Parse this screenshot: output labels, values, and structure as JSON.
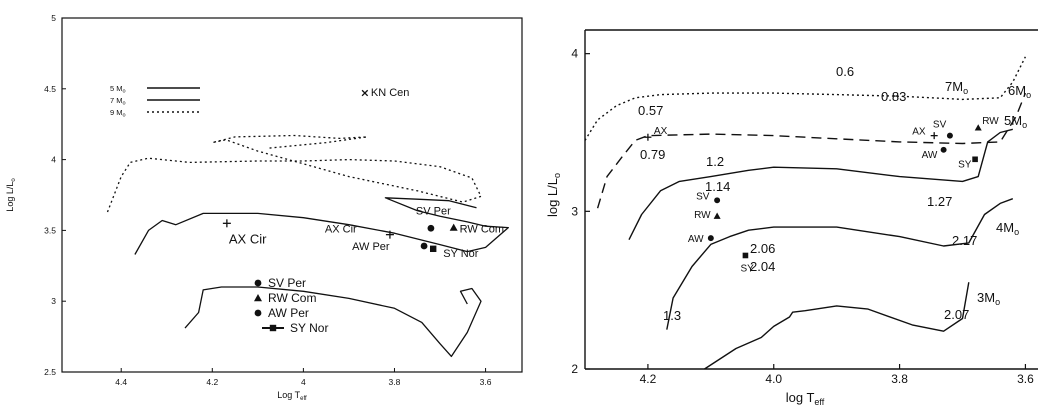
{
  "chart_data": [
    {
      "type": "line",
      "panel": "left",
      "xlabel": "Log T_eff",
      "ylabel": "Log L/L_o",
      "xlim": [
        4.53,
        3.52
      ],
      "ylim": [
        2.5,
        5
      ],
      "x_ticks": [
        "4.4",
        "4.2",
        "4",
        "3.8",
        "3.6"
      ],
      "y_ticks": [
        "2.5",
        "3",
        "3.5",
        "4",
        "4.5",
        "5"
      ],
      "legend_placement": "top-left",
      "series": [
        {
          "name": "5 M_o",
          "style": "solid",
          "points": [
            [
              4.26,
              2.81
            ],
            [
              4.23,
              2.92
            ],
            [
              4.22,
              3.08
            ],
            [
              4.18,
              3.1
            ],
            [
              4.1,
              3.1
            ],
            [
              4.0,
              3.07
            ],
            [
              3.9,
              3.02
            ],
            [
              3.8,
              2.95
            ],
            [
              3.74,
              2.85
            ],
            [
              3.7,
              2.7
            ],
            [
              3.675,
              2.61
            ],
            [
              3.64,
              2.78
            ],
            [
              3.61,
              3.0
            ],
            [
              3.63,
              3.09
            ],
            [
              3.655,
              3.07
            ],
            [
              3.64,
              2.98
            ]
          ]
        },
        {
          "name": "7 M_o",
          "style": "solid",
          "points": [
            [
              4.37,
              3.33
            ],
            [
              4.34,
              3.5
            ],
            [
              4.31,
              3.57
            ],
            [
              4.28,
              3.54
            ],
            [
              4.22,
              3.62
            ],
            [
              4.1,
              3.62
            ],
            [
              4.0,
              3.59
            ],
            [
              3.9,
              3.54
            ],
            [
              3.8,
              3.48
            ],
            [
              3.7,
              3.4
            ],
            [
              3.64,
              3.35
            ],
            [
              3.6,
              3.38
            ],
            [
              3.55,
              3.52
            ],
            [
              3.6,
              3.53
            ],
            [
              3.64,
              3.56
            ],
            [
              3.7,
              3.6
            ],
            [
              3.75,
              3.64
            ],
            [
              3.82,
              3.73
            ],
            [
              3.75,
              3.72
            ],
            [
              3.68,
              3.71
            ],
            [
              3.62,
              3.66
            ]
          ]
        },
        {
          "name": "9 M_o",
          "style": "dotted",
          "points": [
            [
              4.43,
              3.63
            ],
            [
              4.4,
              3.88
            ],
            [
              4.38,
              3.98
            ],
            [
              4.34,
              4.01
            ],
            [
              4.25,
              3.98
            ],
            [
              4.1,
              3.99
            ],
            [
              4.0,
              3.99
            ],
            [
              3.9,
              4.0
            ],
            [
              3.8,
              3.99
            ],
            [
              3.7,
              3.95
            ],
            [
              3.63,
              3.87
            ],
            [
              3.61,
              3.74
            ],
            [
              3.65,
              3.7
            ],
            [
              3.75,
              3.78
            ],
            [
              3.9,
              3.88
            ],
            [
              4.0,
              3.97
            ],
            [
              4.1,
              4.06
            ],
            [
              4.17,
              4.14
            ],
            [
              4.2,
              4.12
            ],
            [
              4.15,
              4.16
            ],
            [
              4.02,
              4.17
            ],
            [
              3.92,
              4.15
            ],
            [
              3.86,
              4.16
            ],
            [
              3.95,
              4.12
            ],
            [
              4.08,
              4.08
            ]
          ]
        }
      ],
      "stars": [
        {
          "label": "AX Cir",
          "symbol": "plus",
          "x": 4.168,
          "y": 3.55
        },
        {
          "label": "AX Cir",
          "symbol": "plus",
          "x": 3.81,
          "y": 3.47
        },
        {
          "label": "SV Per",
          "symbol": "dot",
          "x": 3.72,
          "y": 3.515
        },
        {
          "label": "RW Com",
          "symbol": "triangle",
          "x": 3.67,
          "y": 3.52
        },
        {
          "label": "AW Per",
          "symbol": "dot",
          "x": 3.735,
          "y": 3.39
        },
        {
          "label": "SY Nor",
          "symbol": "square",
          "x": 3.715,
          "y": 3.37
        },
        {
          "label": "KN Cen",
          "symbol": "cross",
          "x": 3.865,
          "y": 4.47
        }
      ],
      "key": [
        {
          "label": "SV Per",
          "symbol": "dot"
        },
        {
          "label": "RW Com",
          "symbol": "triangle"
        },
        {
          "label": "AW Per",
          "symbol": "dot"
        },
        {
          "label": "SY Nor",
          "symbol": "square"
        }
      ]
    },
    {
      "type": "line",
      "panel": "right",
      "xlabel": "log T_eff",
      "ylabel": "log L/L_o",
      "xlim": [
        4.3,
        3.58
      ],
      "ylim": [
        2,
        4.15
      ],
      "x_ticks": [
        "4.2",
        "4.0",
        "3.8",
        "3.6"
      ],
      "y_ticks": [
        "2",
        "3",
        "4"
      ],
      "track_labels": [
        "3M_o",
        "4M_o",
        "5M_o",
        "6M_o",
        "7M_o"
      ],
      "annotations": [
        "0.6",
        "0.83",
        "0.57",
        "0.79",
        "1.2",
        "1.14",
        "1.27",
        "2.06",
        "2.04",
        "2.07",
        "2.17",
        "1.3"
      ],
      "series": [
        {
          "name": "3M_o",
          "style": "solid",
          "points": [
            [
              4.11,
              2.0
            ],
            [
              4.06,
              2.13
            ],
            [
              4.02,
              2.2
            ],
            [
              4.0,
              2.27
            ],
            [
              3.975,
              2.33
            ],
            [
              3.97,
              2.36
            ],
            [
              3.95,
              2.37
            ],
            [
              3.9,
              2.4
            ],
            [
              3.85,
              2.38
            ],
            [
              3.78,
              2.28
            ],
            [
              3.73,
              2.24
            ],
            [
              3.7,
              2.32
            ],
            [
              3.69,
              2.55
            ]
          ]
        },
        {
          "name": "4M_o",
          "style": "solid",
          "points": [
            [
              4.17,
              2.25
            ],
            [
              4.16,
              2.45
            ],
            [
              4.13,
              2.65
            ],
            [
              4.1,
              2.79
            ],
            [
              4.07,
              2.84
            ],
            [
              4.04,
              2.88
            ],
            [
              4.0,
              2.9
            ],
            [
              3.9,
              2.9
            ],
            [
              3.8,
              2.84
            ],
            [
              3.73,
              2.78
            ],
            [
              3.69,
              2.8
            ],
            [
              3.665,
              2.98
            ],
            [
              3.64,
              3.05
            ],
            [
              3.62,
              3.08
            ]
          ]
        },
        {
          "name": "5M_o",
          "style": "solid",
          "points": [
            [
              4.23,
              2.82
            ],
            [
              4.21,
              2.98
            ],
            [
              4.18,
              3.13
            ],
            [
              4.15,
              3.19
            ],
            [
              4.1,
              3.22
            ],
            [
              4.04,
              3.26
            ],
            [
              4.0,
              3.28
            ],
            [
              3.9,
              3.27
            ],
            [
              3.8,
              3.22
            ],
            [
              3.7,
              3.19
            ],
            [
              3.675,
              3.22
            ],
            [
              3.66,
              3.44
            ],
            [
              3.64,
              3.5
            ],
            [
              3.62,
              3.52
            ]
          ]
        },
        {
          "name": "6M_o",
          "style": "dashed",
          "points": [
            [
              4.28,
              3.02
            ],
            [
              4.265,
              3.22
            ],
            [
              4.24,
              3.35
            ],
            [
              4.22,
              3.45
            ],
            [
              4.2,
              3.48
            ],
            [
              4.1,
              3.49
            ],
            [
              4.0,
              3.48
            ],
            [
              3.9,
              3.46
            ],
            [
              3.8,
              3.44
            ],
            [
              3.7,
              3.43
            ],
            [
              3.64,
              3.44
            ],
            [
              3.615,
              3.6
            ],
            [
              3.6,
              3.75
            ]
          ]
        },
        {
          "name": "7M_o",
          "style": "dotted",
          "points": [
            [
              4.3,
              3.45
            ],
            [
              4.28,
              3.58
            ],
            [
              4.25,
              3.67
            ],
            [
              4.22,
              3.72
            ],
            [
              4.18,
              3.74
            ],
            [
              4.1,
              3.75
            ],
            [
              4.0,
              3.75
            ],
            [
              3.9,
              3.74
            ],
            [
              3.8,
              3.73
            ],
            [
              3.7,
              3.71
            ],
            [
              3.64,
              3.72
            ],
            [
              3.62,
              3.82
            ],
            [
              3.6,
              3.98
            ]
          ]
        }
      ],
      "stars": [
        {
          "label": "AX",
          "symbol": "plus",
          "x": 4.2,
          "y": 3.47
        },
        {
          "label": "SV",
          "symbol": "dot",
          "x": 4.09,
          "y": 3.07
        },
        {
          "label": "RW",
          "symbol": "triangle",
          "x": 4.09,
          "y": 2.97
        },
        {
          "label": "AW",
          "symbol": "dot",
          "x": 4.1,
          "y": 2.83
        },
        {
          "label": "SY",
          "symbol": "square",
          "x": 4.045,
          "y": 2.72
        },
        {
          "label": "AX",
          "symbol": "plus",
          "x": 3.745,
          "y": 3.48
        },
        {
          "label": "SV",
          "symbol": "dot",
          "x": 3.72,
          "y": 3.48
        },
        {
          "label": "RW",
          "symbol": "triangle",
          "x": 3.675,
          "y": 3.53
        },
        {
          "label": "AW",
          "symbol": "dot",
          "x": 3.73,
          "y": 3.39
        },
        {
          "label": "SY",
          "symbol": "square",
          "x": 3.68,
          "y": 3.33
        }
      ]
    }
  ]
}
